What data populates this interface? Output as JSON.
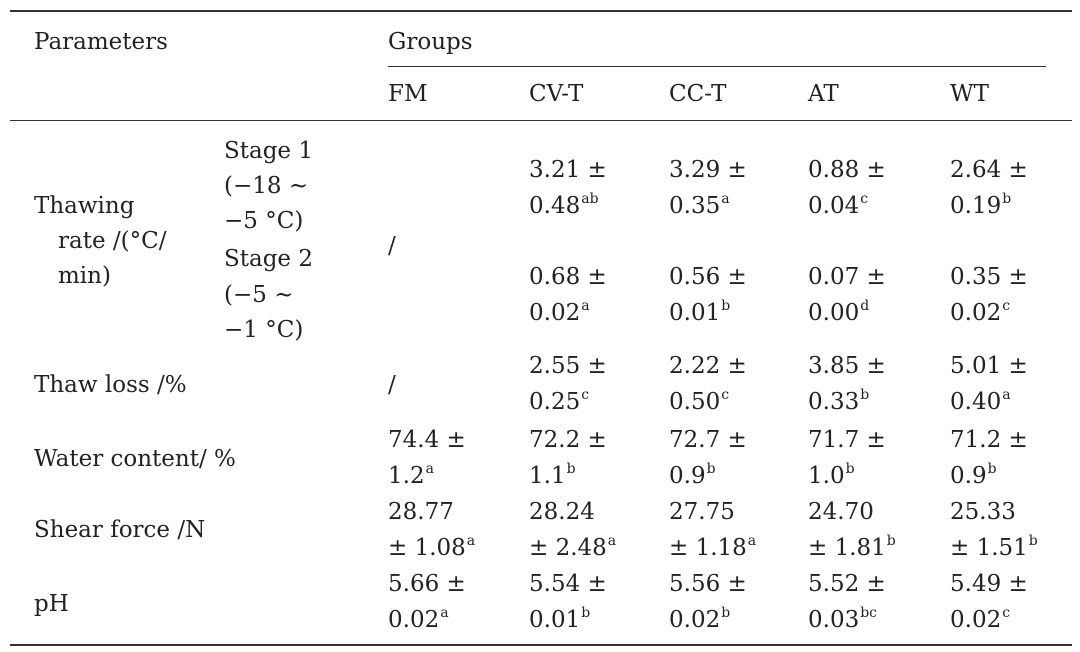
{
  "header": {
    "parameters": "Parameters",
    "groups": "Groups",
    "columns": [
      "FM",
      "CV-T",
      "CC-T",
      "AT",
      "WT"
    ]
  },
  "rows": {
    "thawing_rate": {
      "label_lines": [
        "Thawing",
        "rate /(°C/",
        "min)"
      ],
      "slash": "/",
      "stage1": {
        "label_lines": [
          "Stage 1",
          "(−18 ~",
          "−5 °C)"
        ],
        "cells": [
          {
            "m": "3.21 ±",
            "v": "0.48",
            "s": "ab"
          },
          {
            "m": "3.29 ±",
            "v": "0.35",
            "s": "a"
          },
          {
            "m": "0.88 ±",
            "v": "0.04",
            "s": "c"
          },
          {
            "m": "2.64 ±",
            "v": "0.19",
            "s": "b"
          }
        ]
      },
      "stage2": {
        "label_lines": [
          "Stage 2",
          "(−5 ~",
          "−1 °C)"
        ],
        "cells": [
          {
            "m": "0.68 ±",
            "v": "0.02",
            "s": "a"
          },
          {
            "m": "0.56 ±",
            "v": "0.01",
            "s": "b"
          },
          {
            "m": "0.07 ±",
            "v": "0.00",
            "s": "d"
          },
          {
            "m": "0.35 ±",
            "v": "0.02",
            "s": "c"
          }
        ]
      }
    },
    "thaw_loss": {
      "label": "Thaw loss /%",
      "slash": "/",
      "cells": [
        {
          "m": "2.55 ±",
          "v": "0.25",
          "s": "c"
        },
        {
          "m": "2.22 ±",
          "v": "0.50",
          "s": "c"
        },
        {
          "m": "3.85 ±",
          "v": "0.33",
          "s": "b"
        },
        {
          "m": "5.01 ±",
          "v": "0.40",
          "s": "a"
        }
      ]
    },
    "water_content": {
      "label": "Water content/ %",
      "cells": [
        {
          "m": "74.4 ±",
          "v": "1.2",
          "s": "a"
        },
        {
          "m": "72.2 ±",
          "v": "1.1",
          "s": "b"
        },
        {
          "m": "72.7 ±",
          "v": "0.9",
          "s": "b"
        },
        {
          "m": "71.7 ±",
          "v": "1.0",
          "s": "b"
        },
        {
          "m": "71.2 ±",
          "v": "0.9",
          "s": "b"
        }
      ]
    },
    "shear_force": {
      "label": "Shear force /N",
      "cells": [
        {
          "m": "28.77",
          "v": "± 1.08",
          "s": "a"
        },
        {
          "m": "28.24",
          "v": "± 2.48",
          "s": "a"
        },
        {
          "m": "27.75",
          "v": "± 1.18",
          "s": "a"
        },
        {
          "m": "24.70",
          "v": "± 1.81",
          "s": "b"
        },
        {
          "m": "25.33",
          "v": "± 1.51",
          "s": "b"
        }
      ]
    },
    "ph": {
      "label": "pH",
      "cells": [
        {
          "m": "5.66 ±",
          "v": "0.02",
          "s": "a"
        },
        {
          "m": "5.54 ±",
          "v": "0.01",
          "s": "b"
        },
        {
          "m": "5.56 ±",
          "v": "0.02",
          "s": "b"
        },
        {
          "m": "5.52 ±",
          "v": "0.03",
          "s": "bc"
        },
        {
          "m": "5.49 ±",
          "v": "0.02",
          "s": "c"
        }
      ]
    }
  }
}
